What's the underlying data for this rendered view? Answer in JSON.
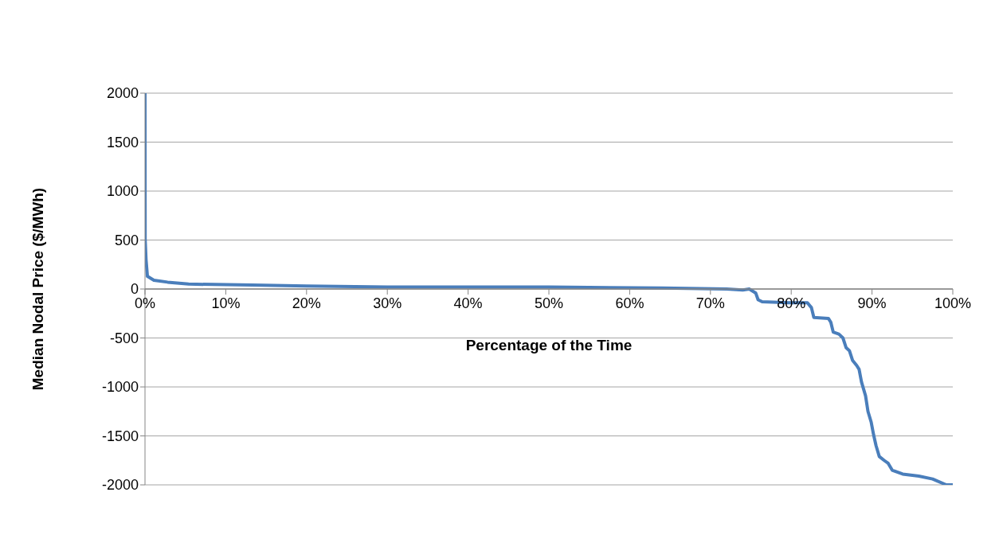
{
  "chart_data": {
    "type": "line",
    "xlabel": "Percentage of the Time",
    "ylabel": "Median Nodal Price ($/MWh)",
    "x": [
      0,
      0.02,
      0.13,
      0.3,
      1.1,
      2.8,
      5.4,
      13.3,
      20,
      30,
      40,
      50,
      64,
      72,
      74,
      74.8,
      75.6,
      75.9,
      76.4,
      79.7,
      82.0,
      82.5,
      82.8,
      84.6,
      84.9,
      85.2,
      85.9,
      86.4,
      86.8,
      87.2,
      87.6,
      88.1,
      88.4,
      88.7,
      89.2,
      89.5,
      89.9,
      90.2,
      90.5,
      90.9,
      91.5,
      92.0,
      92.5,
      93.8,
      95.8,
      97.5,
      99.2,
      100
    ],
    "series": [
      {
        "color": "#4a7ebb",
        "values": [
          2000,
          510,
          300,
          130,
          90,
          70,
          50,
          40,
          30,
          20,
          20,
          20,
          10,
          0,
          -10,
          0,
          -40,
          -110,
          -130,
          -140,
          -140,
          -190,
          -290,
          -300,
          -340,
          -440,
          -460,
          -500,
          -600,
          -630,
          -730,
          -780,
          -820,
          -950,
          -1090,
          -1250,
          -1360,
          -1490,
          -1600,
          -1710,
          -1750,
          -1780,
          -1850,
          -1890,
          -1910,
          -1940,
          -2000,
          -2000
        ]
      }
    ],
    "xlim": [
      0,
      100
    ],
    "xticks": [
      {
        "value": 0,
        "label": "0%"
      },
      {
        "value": 10,
        "label": "10%"
      },
      {
        "value": 20,
        "label": "20%"
      },
      {
        "value": 30,
        "label": "30%"
      },
      {
        "value": 40,
        "label": "40%"
      },
      {
        "value": 50,
        "label": "50%"
      },
      {
        "value": 60,
        "label": "60%"
      },
      {
        "value": 70,
        "label": "70%"
      },
      {
        "value": 80,
        "label": "80%"
      },
      {
        "value": 90,
        "label": "90%"
      },
      {
        "value": 100,
        "label": "100%"
      }
    ],
    "ylim": [
      -2000,
      2000
    ],
    "yticks": [
      -2000,
      -1500,
      -1000,
      -500,
      0,
      500,
      1000,
      1500,
      2000
    ],
    "grid": "y",
    "legend": false,
    "marker": "none",
    "line_style": "solid"
  }
}
